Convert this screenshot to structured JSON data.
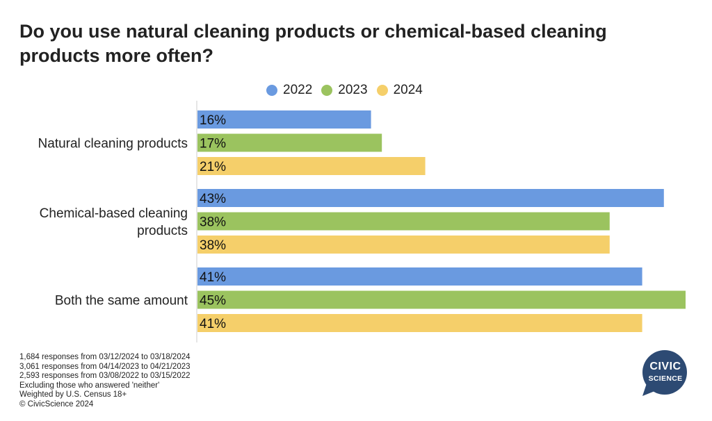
{
  "chart_data": {
    "type": "bar",
    "orientation": "horizontal",
    "title": "Do you use natural cleaning products or chemical-based cleaning products more often?",
    "categories": [
      "Natural cleaning products",
      "Chemical-based cleaning products",
      "Both the same amount"
    ],
    "series": [
      {
        "name": "2022",
        "color": "#6a9ae0",
        "values": [
          16,
          43,
          41
        ],
        "labels": [
          "16%",
          "43%",
          "41%"
        ]
      },
      {
        "name": "2023",
        "color": "#9bc35f",
        "values": [
          17,
          38,
          45
        ],
        "labels": [
          "17%",
          "38%",
          "45%"
        ]
      },
      {
        "name": "2024",
        "color": "#f5cf6a",
        "values": [
          21,
          38,
          41
        ],
        "labels": [
          "21%",
          "38%",
          "41%"
        ]
      }
    ],
    "xlim": [
      0,
      45
    ],
    "legend_position": "top",
    "grid": false
  },
  "notes": [
    "1,684 responses from 03/12/2024 to 03/18/2024",
    "3,061 responses from 04/14/2023 to 04/21/2023",
    "2,593 responses from 03/08/2022 to 03/15/2022",
    "Excluding those who answered 'neither'",
    "Weighted by U.S. Census 18+",
    "© CivicScience 2024"
  ],
  "logo": {
    "line1": "CIVIC",
    "line2": "SCIENCE",
    "color": "#2d4a73"
  }
}
